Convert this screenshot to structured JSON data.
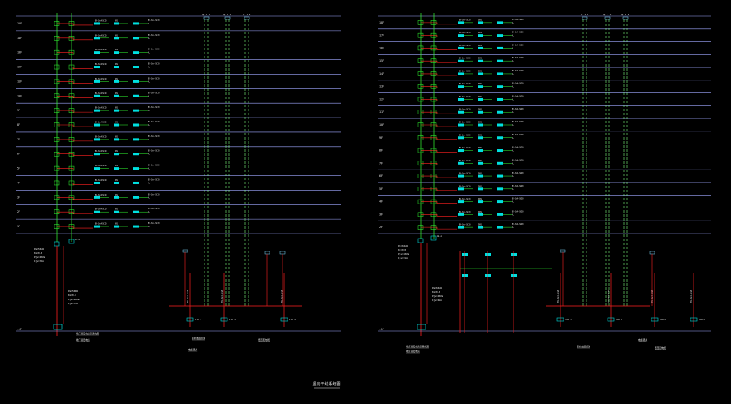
{
  "title": "竖向干线系统图",
  "colors": {
    "background": "#000000",
    "floor_line": "#9fa8ff",
    "riser_green": "#33ff33",
    "riser_dashed": "#7fff7f",
    "feeder_red": "#ff2020",
    "cyan": "#00e0e0",
    "white": "#e8e8e8",
    "box_outline": "#7fdcff"
  },
  "left": {
    "floors": [
      "15F",
      "14F",
      "13F",
      "12F",
      "11F",
      "10F",
      "9F",
      "8F",
      "7F",
      "6F",
      "5F",
      "4F",
      "3F",
      "2F",
      "1F"
    ],
    "ground_label": "-1F",
    "cabinet_label": "AL-n",
    "riser_top_labels": [
      "QL-1-1",
      "QL-1-2",
      "QL-1-3"
    ],
    "mid_left_block": [
      "Pe=50kW",
      "Kx=0.8",
      "Pjs=40kW",
      "Ijs=76A"
    ],
    "bottom_labels": [
      "地下室配电房引来电源",
      "地下室配电房",
      "竖向电缆桥架",
      "电缆竖井",
      "低压配电柜"
    ],
    "bus_labels": [
      "1AP-1",
      "1AP-2",
      "1AP-3"
    ]
  },
  "right": {
    "floors": [
      "18F",
      "17F",
      "16F",
      "15F",
      "14F",
      "13F",
      "12F",
      "11F",
      "10F",
      "9F",
      "8F",
      "7F",
      "6F",
      "5F",
      "4F",
      "3F",
      "2F"
    ],
    "ground_label": "-1F",
    "cabinet_label": "AL-n",
    "riser_top_labels": [
      "QL-2-1",
      "QL-2-2",
      "QL-2-3"
    ],
    "mid_left_block": [
      "Pe=60kW",
      "Kx=0.8",
      "Pjs=48kW",
      "Ijs=91A"
    ],
    "bottom_labels": [
      "地下室配电房引来电源",
      "地下室配电房",
      "竖向电缆桥架",
      "电缆竖井",
      "低压配电柜"
    ],
    "bus_labels": [
      "2AP-1",
      "2AP-2",
      "2AP-3",
      "2AP-4"
    ]
  },
  "row_labels": {
    "breaker": "BV-3x4-SC20",
    "meter": "DDS",
    "load": "AL"
  }
}
